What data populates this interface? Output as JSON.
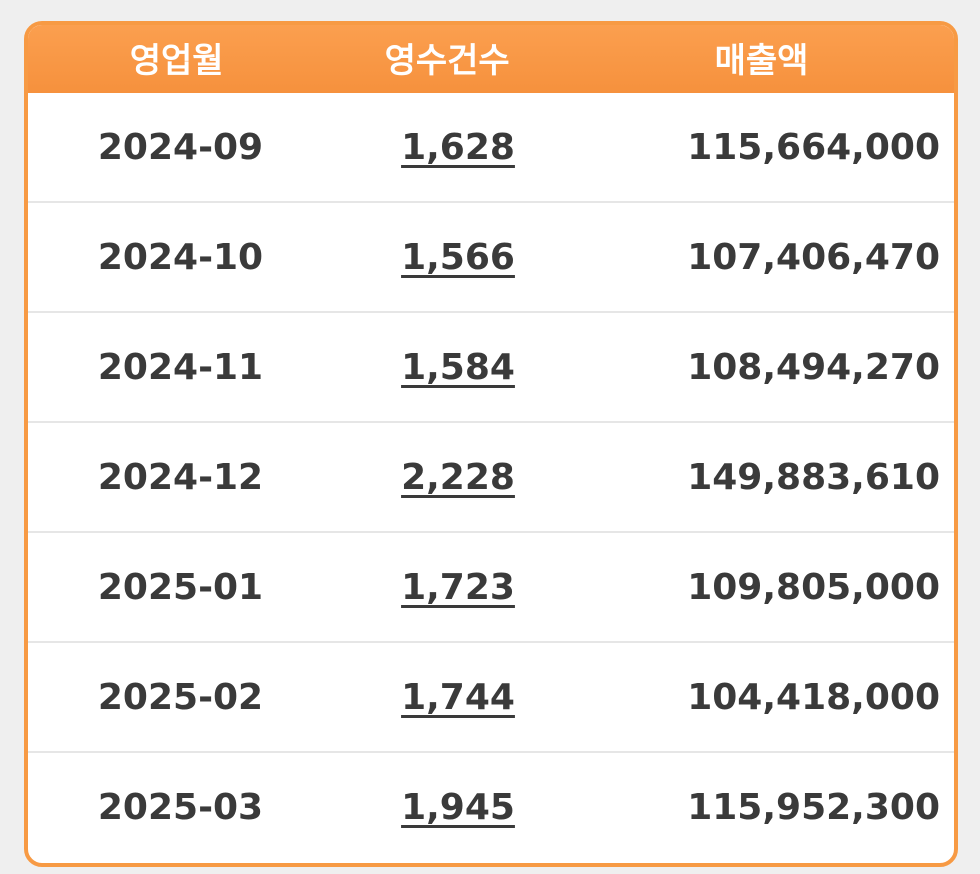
{
  "table": {
    "headers": {
      "month": "영업월",
      "count": "영수건수",
      "sales": "매출액"
    },
    "rows": [
      {
        "month": "2024-09",
        "count": "1,628",
        "sales": "115,664,000"
      },
      {
        "month": "2024-10",
        "count": "1,566",
        "sales": "107,406,470"
      },
      {
        "month": "2024-11",
        "count": "1,584",
        "sales": "108,494,270"
      },
      {
        "month": "2024-12",
        "count": "2,228",
        "sales": "149,883,610"
      },
      {
        "month": "2025-01",
        "count": "1,723",
        "sales": "109,805,000"
      },
      {
        "month": "2025-02",
        "count": "1,744",
        "sales": "104,418,000"
      },
      {
        "month": "2025-03",
        "count": "1,945",
        "sales": "115,952,300"
      }
    ]
  },
  "colors": {
    "header_bg": "#f6913d",
    "border": "#f79a44",
    "text": "#3a3a3a"
  }
}
